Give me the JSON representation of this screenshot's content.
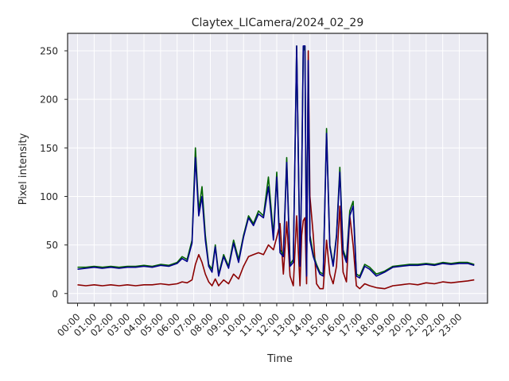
{
  "chart_data": {
    "type": "line",
    "title": "Claytex_LICamera/2024_02_29",
    "xlabel": "Time",
    "ylabel": "Pixel intensity",
    "xlim": [
      -0.6,
      24.7
    ],
    "ylim": [
      -10,
      268
    ],
    "x_ticks": [
      0,
      1,
      2,
      3,
      4,
      5,
      6,
      7,
      8,
      9,
      10,
      11,
      12,
      13,
      14,
      15,
      16,
      17,
      18,
      19,
      20,
      21,
      22,
      23
    ],
    "x_tick_labels": [
      "00:00",
      "01:00",
      "02:00",
      "03:00",
      "04:00",
      "05:00",
      "06:00",
      "07:00",
      "08:00",
      "09:00",
      "10:00",
      "11:00",
      "12:00",
      "13:00",
      "14:00",
      "15:00",
      "16:00",
      "17:00",
      "18:00",
      "19:00",
      "20:00",
      "21:00",
      "22:00",
      "23:00"
    ],
    "y_ticks": [
      0,
      50,
      100,
      150,
      200,
      250
    ],
    "y_tick_labels": [
      "0",
      "50",
      "100",
      "150",
      "200",
      "250"
    ],
    "grid": true,
    "colors": {
      "background": "#eaeaf2",
      "grid": "#ffffff",
      "red": "#8b0000",
      "green": "#006400",
      "blue": "#00008b"
    },
    "series": [
      {
        "color": "red",
        "x": [
          0,
          0.5,
          1,
          1.5,
          2,
          2.5,
          3,
          3.5,
          4,
          4.5,
          5,
          5.5,
          6,
          6.3,
          6.6,
          6.9,
          7.1,
          7.3,
          7.5,
          7.7,
          7.9,
          8.1,
          8.3,
          8.5,
          8.8,
          9.1,
          9.4,
          9.7,
          10,
          10.3,
          10.6,
          10.9,
          11.2,
          11.5,
          11.8,
          12.0,
          12.2,
          12.4,
          12.6,
          12.8,
          13.0,
          13.2,
          13.4,
          13.5,
          13.6,
          13.7,
          13.8,
          13.9,
          14.0,
          14.2,
          14.4,
          14.6,
          14.8,
          15.0,
          15.2,
          15.4,
          15.6,
          15.8,
          16.0,
          16.2,
          16.4,
          16.6,
          16.8,
          17.0,
          17.3,
          17.6,
          18.0,
          18.5,
          19.0,
          19.5,
          20.0,
          20.5,
          21.0,
          21.5,
          22.0,
          22.5,
          23.0,
          23.5,
          23.9
        ],
        "values": [
          9,
          8,
          9,
          8,
          9,
          8,
          9,
          8,
          9,
          9,
          10,
          9,
          10,
          12,
          11,
          14,
          30,
          40,
          32,
          20,
          12,
          8,
          15,
          8,
          14,
          10,
          20,
          15,
          28,
          38,
          40,
          42,
          40,
          50,
          45,
          58,
          72,
          20,
          74,
          18,
          8,
          80,
          8,
          60,
          75,
          78,
          10,
          250,
          100,
          60,
          10,
          5,
          5,
          55,
          20,
          10,
          28,
          90,
          22,
          12,
          80,
          50,
          8,
          5,
          10,
          8,
          6,
          5,
          8,
          9,
          10,
          9,
          11,
          10,
          12,
          11,
          12,
          13,
          14
        ]
      },
      {
        "color": "green",
        "x": [
          0,
          0.5,
          1,
          1.5,
          2,
          2.5,
          3,
          3.5,
          4,
          4.5,
          5,
          5.5,
          6,
          6.3,
          6.6,
          6.9,
          7.1,
          7.3,
          7.5,
          7.7,
          7.9,
          8.1,
          8.3,
          8.5,
          8.8,
          9.1,
          9.4,
          9.7,
          10,
          10.3,
          10.6,
          10.9,
          11.2,
          11.5,
          11.8,
          12.0,
          12.2,
          12.4,
          12.6,
          12.8,
          13.0,
          13.2,
          13.4,
          13.5,
          13.6,
          13.7,
          13.8,
          13.9,
          14.0,
          14.2,
          14.4,
          14.6,
          14.8,
          15.0,
          15.2,
          15.4,
          15.6,
          15.8,
          16.0,
          16.2,
          16.4,
          16.6,
          16.8,
          17.0,
          17.3,
          17.6,
          18.0,
          18.5,
          19.0,
          19.5,
          20.0,
          20.5,
          21.0,
          21.5,
          22.0,
          22.5,
          23.0,
          23.5,
          23.9
        ],
        "values": [
          27,
          27,
          28,
          27,
          28,
          27,
          28,
          28,
          29,
          28,
          30,
          29,
          32,
          38,
          35,
          55,
          150,
          85,
          110,
          60,
          30,
          25,
          50,
          20,
          40,
          28,
          55,
          35,
          60,
          80,
          72,
          85,
          80,
          120,
          60,
          125,
          45,
          40,
          140,
          30,
          35,
          255,
          30,
          120,
          250,
          255,
          20,
          230,
          60,
          40,
          30,
          22,
          20,
          170,
          50,
          30,
          60,
          130,
          45,
          35,
          85,
          95,
          20,
          18,
          30,
          27,
          20,
          23,
          28,
          29,
          30,
          30,
          31,
          30,
          32,
          31,
          32,
          32,
          30
        ]
      },
      {
        "color": "blue",
        "x": [
          0,
          0.5,
          1,
          1.5,
          2,
          2.5,
          3,
          3.5,
          4,
          4.5,
          5,
          5.5,
          6,
          6.3,
          6.6,
          6.9,
          7.1,
          7.3,
          7.5,
          7.7,
          7.9,
          8.1,
          8.3,
          8.5,
          8.8,
          9.1,
          9.4,
          9.7,
          10,
          10.3,
          10.6,
          10.9,
          11.2,
          11.5,
          11.8,
          12.0,
          12.2,
          12.4,
          12.6,
          12.8,
          13.0,
          13.2,
          13.4,
          13.5,
          13.6,
          13.7,
          13.8,
          13.9,
          14.0,
          14.2,
          14.4,
          14.6,
          14.8,
          15.0,
          15.2,
          15.4,
          15.6,
          15.8,
          16.0,
          16.2,
          16.4,
          16.6,
          16.8,
          17.0,
          17.3,
          17.6,
          18.0,
          18.5,
          19.0,
          19.5,
          20.0,
          20.5,
          21.0,
          21.5,
          22.0,
          22.5,
          23.0,
          23.5,
          23.9
        ],
        "values": [
          25,
          26,
          27,
          26,
          27,
          26,
          27,
          27,
          28,
          27,
          29,
          28,
          31,
          36,
          33,
          52,
          140,
          80,
          100,
          55,
          28,
          22,
          48,
          18,
          38,
          26,
          52,
          32,
          58,
          78,
          70,
          82,
          78,
          110,
          55,
          120,
          42,
          38,
          135,
          28,
          32,
          255,
          28,
          115,
          255,
          255,
          18,
          240,
          55,
          38,
          28,
          20,
          18,
          165,
          48,
          28,
          58,
          125,
          42,
          32,
          80,
          90,
          18,
          16,
          28,
          25,
          18,
          22,
          27,
          28,
          29,
          29,
          30,
          29,
          31,
          30,
          31,
          31,
          29
        ]
      }
    ]
  }
}
